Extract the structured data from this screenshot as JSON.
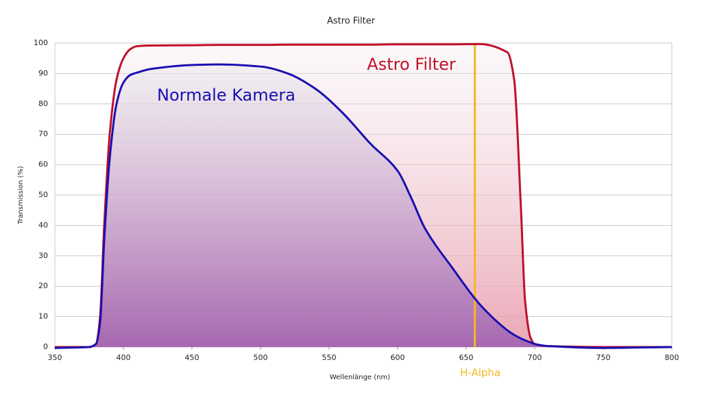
{
  "chart_data": {
    "type": "line",
    "title": "Astro Filter",
    "x_label": "Wellenlänge (nm)",
    "y_label": "Transmission (%)",
    "x": [
      350,
      375,
      380,
      383,
      386,
      390,
      395,
      400,
      405,
      410,
      420,
      450,
      470,
      500,
      520,
      540,
      560,
      580,
      600,
      610,
      620,
      640,
      660,
      680,
      685,
      690,
      693,
      697,
      700,
      710,
      750,
      800
    ],
    "series": [
      {
        "name": "Astro Filter",
        "color": "#c0102a",
        "values": [
          0,
          0,
          1,
          10,
          40,
          70,
          88,
          95,
          98,
          99,
          99.2,
          99.3,
          99.4,
          99.4,
          99.5,
          99.5,
          99.5,
          99.5,
          99.6,
          99.6,
          99.6,
          99.6,
          99.7,
          97,
          88,
          45,
          15,
          3,
          1,
          0.3,
          0,
          0
        ]
      },
      {
        "name": "Normale Kamera",
        "color": "#1a10b0",
        "values": [
          -0.3,
          0,
          1,
          8,
          35,
          62,
          80,
          87,
          89.5,
          90.3,
          91.5,
          92.8,
          93,
          92.3,
          90,
          85,
          77,
          67,
          58,
          49,
          39,
          26,
          14,
          5.5,
          4,
          2.8,
          2.2,
          1.5,
          1,
          0.3,
          -0.3,
          0
        ]
      }
    ],
    "annotations": [
      {
        "text": "H-Alpha",
        "x": 656.3,
        "color": "#f5b820"
      }
    ],
    "xlim": [
      350,
      800
    ],
    "ylim": [
      0,
      100
    ],
    "xticks": [
      350,
      400,
      450,
      500,
      550,
      600,
      650,
      700,
      750,
      800
    ],
    "yticks": [
      0,
      10,
      20,
      30,
      40,
      50,
      60,
      70,
      80,
      90,
      100
    ],
    "grid": true
  }
}
